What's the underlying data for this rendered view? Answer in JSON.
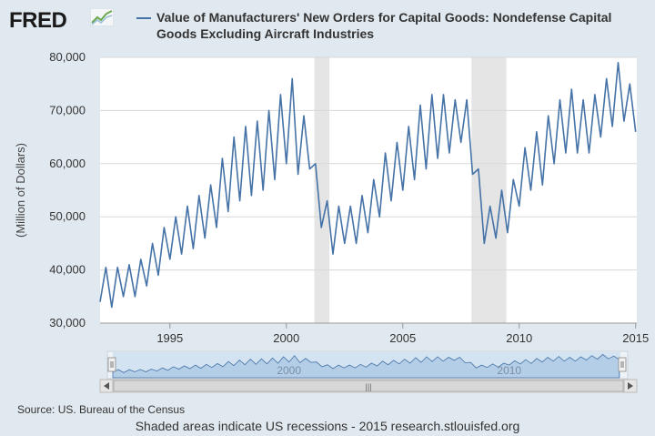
{
  "header": {
    "logo_text": "FRED",
    "logo_icon": "trend-line-icon"
  },
  "chart_data": {
    "type": "line",
    "title": "Value of Manufacturers' New Orders for Capital Goods: Nondefense Capital Goods Excluding Aircraft Industries",
    "ylabel": "(Million of Dollars)",
    "xlabel": "",
    "xlim": [
      1992.0,
      2015.05
    ],
    "ylim": [
      30000,
      80000
    ],
    "y_ticks": [
      30000,
      40000,
      50000,
      60000,
      70000,
      80000
    ],
    "y_tick_labels": [
      "30,000",
      "40,000",
      "50,000",
      "60,000",
      "70,000",
      "80,000"
    ],
    "x_ticks": [
      1995,
      2000,
      2005,
      2010,
      2015
    ],
    "x_tick_labels": [
      "1995",
      "2000",
      "2005",
      "2010",
      "2015"
    ],
    "grid": true,
    "recessions": [
      {
        "start": 2001.2,
        "end": 2001.85
      },
      {
        "start": 2007.95,
        "end": 2009.45
      }
    ],
    "series": [
      {
        "color": "#4572a7",
        "x": [
          1992.0,
          1992.25,
          1992.5,
          1992.75,
          1993.0,
          1993.25,
          1993.5,
          1993.75,
          1994.0,
          1994.25,
          1994.5,
          1994.75,
          1995.0,
          1995.25,
          1995.5,
          1995.75,
          1996.0,
          1996.25,
          1996.5,
          1996.75,
          1997.0,
          1997.25,
          1997.5,
          1997.75,
          1998.0,
          1998.25,
          1998.5,
          1998.75,
          1999.0,
          1999.25,
          1999.5,
          1999.75,
          2000.0,
          2000.25,
          2000.5,
          2000.75,
          2001.0,
          2001.25,
          2001.5,
          2001.75,
          2002.0,
          2002.25,
          2002.5,
          2002.75,
          2003.0,
          2003.25,
          2003.5,
          2003.75,
          2004.0,
          2004.25,
          2004.5,
          2004.75,
          2005.0,
          2005.25,
          2005.5,
          2005.75,
          2006.0,
          2006.25,
          2006.5,
          2006.75,
          2007.0,
          2007.25,
          2007.5,
          2007.75,
          2008.0,
          2008.25,
          2008.5,
          2008.75,
          2009.0,
          2009.25,
          2009.5,
          2009.75,
          2010.0,
          2010.25,
          2010.5,
          2010.75,
          2011.0,
          2011.25,
          2011.5,
          2011.75,
          2012.0,
          2012.25,
          2012.5,
          2012.75,
          2013.0,
          2013.25,
          2013.5,
          2013.75,
          2014.0,
          2014.25,
          2014.5,
          2014.75,
          2015.0
        ],
        "values": [
          34000,
          40500,
          33000,
          40500,
          35000,
          41000,
          35000,
          42000,
          37000,
          45000,
          39000,
          48000,
          42000,
          50000,
          43000,
          52000,
          44000,
          54000,
          46000,
          56000,
          48000,
          61000,
          51000,
          65000,
          53000,
          67000,
          54000,
          68000,
          55000,
          70000,
          57000,
          73000,
          60000,
          76000,
          58000,
          69000,
          59000,
          60000,
          48000,
          53000,
          43000,
          52000,
          45000,
          52000,
          45000,
          54000,
          47000,
          57000,
          50000,
          62000,
          53000,
          64000,
          55000,
          67000,
          57000,
          71000,
          59000,
          73000,
          61000,
          73000,
          62000,
          72000,
          64000,
          72000,
          58000,
          59000,
          45000,
          52000,
          46000,
          55000,
          47000,
          57000,
          52000,
          63000,
          55000,
          66000,
          56000,
          69000,
          60000,
          72000,
          62000,
          74000,
          62000,
          72000,
          62000,
          73000,
          65000,
          76000,
          67000,
          79000,
          68000,
          75000,
          66000
        ]
      }
    ],
    "navigator_labels": [
      "2000",
      "2010"
    ]
  },
  "footer": {
    "source": "Source: US. Bureau of the Census",
    "note": "Shaded areas indicate US recessions - 2015 research.stlouisfed.org"
  }
}
